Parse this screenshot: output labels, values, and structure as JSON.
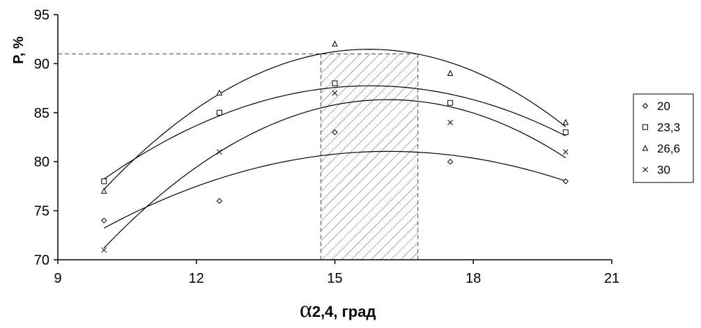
{
  "chart_data": {
    "type": "scatter",
    "title": "",
    "ylabel": "P, %",
    "xlabel_symbol": "α",
    "xlabel_sub": "2,4",
    "xlabel_unit": ", град",
    "xlim": [
      9,
      21
    ],
    "ylim": [
      70,
      95
    ],
    "x_ticks": [
      9,
      12,
      15,
      18,
      21
    ],
    "y_ticks": [
      70,
      75,
      80,
      85,
      90,
      95
    ],
    "x_tick_labels": [
      "9",
      "12",
      "15",
      "18",
      "21"
    ],
    "y_tick_labels": [
      "70",
      "75",
      "80",
      "85",
      "90",
      "95"
    ],
    "trendline": "polynomial-2",
    "reference_line_y": 91,
    "optimal_band_x": [
      14.7,
      16.8
    ],
    "legend_position": "right",
    "series": [
      {
        "name": "20",
        "marker": "diamond",
        "x": [
          10,
          12.5,
          15,
          17.5,
          20
        ],
        "y": [
          74,
          76,
          83,
          80,
          78
        ]
      },
      {
        "name": "23,3",
        "marker": "square",
        "x": [
          10,
          12.5,
          15,
          17.5,
          20
        ],
        "y": [
          78,
          85,
          88,
          86,
          83
        ]
      },
      {
        "name": "26,6",
        "marker": "triangle",
        "x": [
          10,
          12.5,
          15,
          17.5,
          20
        ],
        "y": [
          77,
          87,
          92,
          89,
          84
        ]
      },
      {
        "name": "30",
        "marker": "cross",
        "x": [
          10,
          12.5,
          15,
          17.5,
          20
        ],
        "y": [
          71,
          81,
          87,
          84,
          81
        ]
      }
    ]
  }
}
